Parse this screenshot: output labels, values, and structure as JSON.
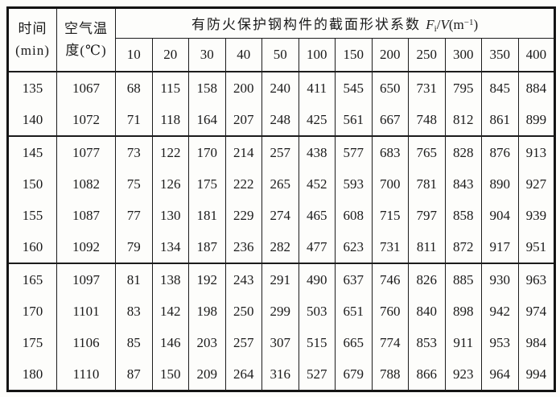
{
  "table": {
    "header": {
      "time_label_line1": "时间",
      "time_label_line2": "(min)",
      "temp_label_line1": "空气温",
      "temp_label_line2": "度(℃)",
      "coefficient_title_prefix": "有防火保护钢构件的截面形状系数 ",
      "formula": {
        "f": "F",
        "f_sub": "i",
        "mid": "/",
        "v": "V",
        "open": "(m",
        "exp": "−1",
        "close": ")"
      }
    },
    "coefficient_columns": [
      "10",
      "20",
      "30",
      "40",
      "50",
      "100",
      "150",
      "200",
      "250",
      "300",
      "350",
      "400"
    ],
    "groups": [
      {
        "rows": [
          {
            "time": "135",
            "temp": "1067",
            "values": [
              "68",
              "115",
              "158",
              "200",
              "240",
              "411",
              "545",
              "650",
              "731",
              "795",
              "845",
              "884"
            ]
          },
          {
            "time": "140",
            "temp": "1072",
            "values": [
              "71",
              "118",
              "164",
              "207",
              "248",
              "425",
              "561",
              "667",
              "748",
              "812",
              "861",
              "899"
            ]
          }
        ]
      },
      {
        "rows": [
          {
            "time": "145",
            "temp": "1077",
            "values": [
              "73",
              "122",
              "170",
              "214",
              "257",
              "438",
              "577",
              "683",
              "765",
              "828",
              "876",
              "913"
            ]
          },
          {
            "time": "150",
            "temp": "1082",
            "values": [
              "75",
              "126",
              "175",
              "222",
              "265",
              "452",
              "593",
              "700",
              "781",
              "843",
              "890",
              "927"
            ]
          },
          {
            "time": "155",
            "temp": "1087",
            "values": [
              "77",
              "130",
              "181",
              "229",
              "274",
              "465",
              "608",
              "715",
              "797",
              "858",
              "904",
              "939"
            ]
          },
          {
            "time": "160",
            "temp": "1092",
            "values": [
              "79",
              "134",
              "187",
              "236",
              "282",
              "477",
              "623",
              "731",
              "811",
              "872",
              "917",
              "951"
            ]
          }
        ]
      },
      {
        "rows": [
          {
            "time": "165",
            "temp": "1097",
            "values": [
              "81",
              "138",
              "192",
              "243",
              "291",
              "490",
              "637",
              "746",
              "826",
              "885",
              "930",
              "963"
            ]
          },
          {
            "time": "170",
            "temp": "1101",
            "values": [
              "83",
              "142",
              "198",
              "250",
              "299",
              "503",
              "651",
              "760",
              "840",
              "898",
              "942",
              "974"
            ]
          },
          {
            "time": "175",
            "temp": "1106",
            "values": [
              "85",
              "146",
              "203",
              "257",
              "307",
              "515",
              "665",
              "774",
              "853",
              "911",
              "953",
              "984"
            ]
          },
          {
            "time": "180",
            "temp": "1110",
            "values": [
              "87",
              "150",
              "209",
              "264",
              "316",
              "527",
              "679",
              "788",
              "866",
              "923",
              "964",
              "994"
            ]
          }
        ]
      }
    ]
  }
}
